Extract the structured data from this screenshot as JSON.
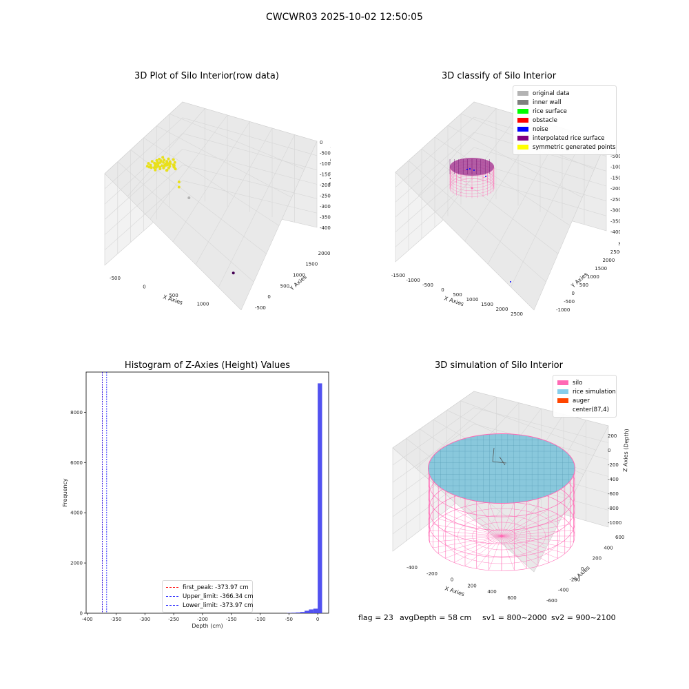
{
  "suptitle": "CWCWR03 2025-10-02 12:50:05",
  "panels": {
    "raw": {
      "title": "3D Plot of Silo Interior(row data)",
      "xlabel": "X Axies",
      "ylabel": "Y Axies",
      "zlabel": "Z Axies (Depth)",
      "xticks": [
        "-500",
        "0",
        "500",
        "1000",
        "1500"
      ],
      "yticks": [
        "-500",
        "0",
        "500",
        "1000",
        "1500",
        "2000",
        "2500"
      ],
      "zticks": [
        "0",
        "-500",
        "-1000",
        "-1500",
        "-2000",
        "-2500",
        "-3000",
        "-3500",
        "-4000"
      ]
    },
    "classify": {
      "title": "3D classify of Silo Interior",
      "xlabel": "X Axies",
      "ylabel": "Y Axies",
      "zlabel": "Z Axies (Depth)",
      "xticks": [
        "-1500",
        "-1000",
        "-500",
        "0",
        "500",
        "1000",
        "1500",
        "2000",
        "2500"
      ],
      "yticks": [
        "-1000",
        "-500",
        "0",
        "500",
        "1000",
        "1500",
        "2000",
        "2500",
        "3000"
      ],
      "zticks": [
        "-500",
        "-1000",
        "-1500",
        "-2000",
        "-2500",
        "-3000",
        "-3500",
        "-4000"
      ],
      "legend": [
        {
          "label": "original data",
          "color": "#b3b3b3"
        },
        {
          "label": "inner wall",
          "color": "#808080"
        },
        {
          "label": "rice surface",
          "color": "#00ff00"
        },
        {
          "label": "obstacle",
          "color": "#ff0000"
        },
        {
          "label": "noise",
          "color": "#0000ff"
        },
        {
          "label": "interpolated rice surface",
          "color": "#800080"
        },
        {
          "label": "symmetric generated points",
          "color": "#ffff00"
        }
      ]
    },
    "histogram": {
      "title": "Histogram of Z-Axies (Height) Values",
      "xlabel": "Depth (cm)",
      "ylabel": "Frequency",
      "legend": [
        {
          "label": "first_peak: -373.97 cm",
          "color": "#ff0000"
        },
        {
          "label": "Upper_limit: -366.34 cm",
          "color": "#0000ff"
        },
        {
          "label": "Lower_limit: -373.97 cm",
          "color": "#0000ff"
        }
      ]
    },
    "simulation": {
      "title": "3D simulation of Silo Interior",
      "xlabel": "X Axies",
      "ylabel": "Y Axies",
      "zlabel": "Z Axies (Depth)",
      "xticks": [
        "-400",
        "-200",
        "0",
        "200",
        "400",
        "600"
      ],
      "yticks": [
        "-600",
        "-400",
        "-200",
        "0",
        "200",
        "400",
        "600"
      ],
      "zticks": [
        "200",
        "0",
        "-200",
        "-400",
        "-600",
        "-800",
        "-1000"
      ],
      "legend": [
        {
          "label": "silo",
          "color": "#ff69b4"
        },
        {
          "label": "rice simulation",
          "color": "#87ceeb"
        },
        {
          "label": "auger",
          "color": "#ff4500"
        },
        {
          "label": "center(87,4)",
          "color": "#ffffff"
        }
      ]
    }
  },
  "footer": {
    "flag": "flag = 23",
    "avg_depth": "avgDepth = 58 cm",
    "sv1": "sv1 = 800~2000",
    "sv2": "sv2 = 900~2100"
  },
  "chart_data": [
    {
      "type": "scatter",
      "title": "3D Plot of Silo Interior(row data)",
      "xlabel": "X Axies",
      "ylabel": "Y Axies",
      "zlabel": "Z Axies (Depth)",
      "xlim": [
        -700,
        1800
      ],
      "ylim": [
        -700,
        2600
      ],
      "zlim": [
        -4200,
        200
      ],
      "series": [
        {
          "color": "#e8e01a",
          "x": [
            -500,
            -450,
            -300,
            -250,
            -200,
            -150,
            -100,
            -250,
            -300,
            100,
            150
          ],
          "y": [
            600,
            700,
            900,
            950,
            1000,
            900,
            850,
            800,
            1000,
            600,
            500
          ],
          "z": [
            -800,
            -900,
            -900,
            -850,
            -950,
            -900,
            -900,
            -1000,
            -950,
            -1100,
            -1200
          ]
        },
        {
          "color": "#b3b3b3",
          "x": [
            300
          ],
          "y": [
            600
          ],
          "z": [
            -1700
          ]
        },
        {
          "color": "#440154",
          "x": [
            1700
          ],
          "y": [
            -400
          ],
          "z": [
            -3200
          ]
        }
      ]
    },
    {
      "type": "scatter",
      "title": "3D classify of Silo Interior",
      "xlabel": "X Axies",
      "ylabel": "Y Axies",
      "zlabel": "Z Axies (Depth)",
      "xlim": [
        -1600,
        2600
      ],
      "ylim": [
        -1100,
        3100
      ],
      "zlim": [
        -4200,
        0
      ],
      "series": [
        {
          "name": "interpolated rice surface",
          "color": "#800080",
          "shape": "cylinder",
          "center": [
            87,
            4
          ],
          "radius": 650,
          "z_top": -400,
          "z_bottom": -1100
        },
        {
          "name": "noise",
          "color": "#0000ff",
          "x": [
            0,
            50,
            -50,
            1900
          ],
          "y": [
            0,
            30,
            -20,
            -500
          ],
          "z": [
            -400,
            -420,
            -410,
            -3000
          ]
        }
      ]
    },
    {
      "type": "bar",
      "title": "Histogram of Z-Axies (Height) Values",
      "xlabel": "Depth (cm)",
      "ylabel": "Frequency",
      "xlim": [
        -402,
        19
      ],
      "ylim": [
        0,
        9600
      ],
      "xticks": [
        -400,
        -350,
        -300,
        -250,
        -200,
        -150,
        -100,
        -50,
        0
      ],
      "yticks": [
        0,
        2000,
        4000,
        6000,
        8000
      ],
      "bin_width": 7.6,
      "bins": [
        {
          "x0": -53.2,
          "value": 10
        },
        {
          "x0": -45.6,
          "value": 20
        },
        {
          "x0": -38.0,
          "value": 30
        },
        {
          "x0": -30.4,
          "value": 50
        },
        {
          "x0": -22.8,
          "value": 100
        },
        {
          "x0": -15.2,
          "value": 150
        },
        {
          "x0": -7.6,
          "value": 180
        },
        {
          "x0": 0.0,
          "value": 9150
        }
      ],
      "vlines": [
        {
          "name": "first_peak: -373.97 cm",
          "x": -373.97,
          "color": "#ff0000"
        },
        {
          "name": "Upper_limit: -366.34 cm",
          "x": -366.34,
          "color": "#0000ff"
        },
        {
          "name": "Lower_limit: -373.97 cm",
          "x": -373.97,
          "color": "#0000ff"
        }
      ]
    },
    {
      "type": "scatter",
      "title": "3D simulation of Silo Interior",
      "xlabel": "X Axies",
      "ylabel": "Y Axies",
      "zlabel": "Z Axies (Depth)",
      "xlim": [
        -500,
        700
      ],
      "ylim": [
        -700,
        700
      ],
      "zlim": [
        -1050,
        250
      ],
      "series": [
        {
          "name": "silo",
          "color": "#ff69b4",
          "shape": "cylinder",
          "center": [
            87,
            4
          ],
          "radius": 600,
          "z_top": 0,
          "z_bottom": -1000
        },
        {
          "name": "rice simulation",
          "color": "#87ceeb",
          "shape": "surface",
          "z": -58
        },
        {
          "name": "auger",
          "color": "#ff4500"
        }
      ]
    }
  ]
}
